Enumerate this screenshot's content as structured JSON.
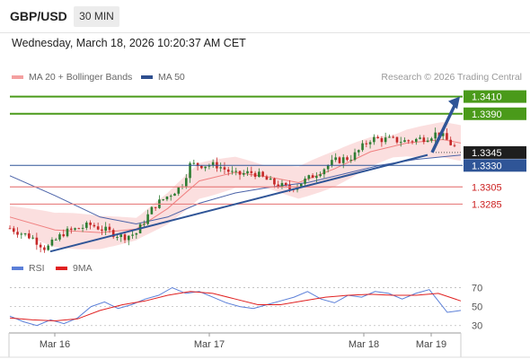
{
  "header": {
    "symbol": "GBP/USD",
    "timeframe": "30 MIN"
  },
  "timestamp": "Wednesday, March 18, 2026 10:20:37 AM CET",
  "legend": {
    "ma20_label": "MA 20 + Bollinger Bands",
    "ma50_label": "MA 50",
    "source": "Research © 2026 Trading Central"
  },
  "rsi_legend": {
    "rsi_label": "RSI",
    "ma9_label": "9MA"
  },
  "colors": {
    "resistance": "#4a9a1a",
    "support": "#e88080",
    "pivot": "#2f5597",
    "price_tag": "#1e1e1e",
    "bollinger": "#fbdcdc",
    "ma20": "#f08080",
    "ma50": "#4a62a8",
    "rsi": "#5b7fd8",
    "rsi_ma": "#e02020"
  },
  "chart_data": [
    {
      "type": "candlestick",
      "title": "GBP/USD 30 MIN",
      "x_ticks": [
        "Mar 16",
        "Mar 17",
        "Mar 18",
        "Mar 19"
      ],
      "ylim": [
        1.3225,
        1.342
      ],
      "indicators": [
        "MA 20 + Bollinger Bands",
        "MA 50"
      ],
      "levels": [
        {
          "value": 1.341,
          "label": "1.3410",
          "kind": "resistance"
        },
        {
          "value": 1.339,
          "label": "1.3390",
          "kind": "resistance"
        },
        {
          "value": 1.3345,
          "label": "1.3345",
          "kind": "last_price"
        },
        {
          "value": 1.333,
          "label": "1.3330",
          "kind": "pivot"
        },
        {
          "value": 1.3305,
          "label": "1.3305",
          "kind": "support"
        },
        {
          "value": 1.3285,
          "label": "1.3285",
          "kind": "support"
        }
      ],
      "trendline": [
        [
          0,
          1.323
        ],
        [
          100,
          1.3338
        ]
      ],
      "arrow_target": 1.341,
      "close_path": [
        [
          0,
          1.3257
        ],
        [
          5,
          1.3246
        ],
        [
          8,
          1.3233
        ],
        [
          12,
          1.3252
        ],
        [
          18,
          1.3261
        ],
        [
          25,
          1.3247
        ],
        [
          28,
          1.3251
        ],
        [
          32,
          1.3283
        ],
        [
          38,
          1.3306
        ],
        [
          40,
          1.3331
        ],
        [
          46,
          1.333
        ],
        [
          50,
          1.3319
        ],
        [
          54,
          1.3322
        ],
        [
          58,
          1.331
        ],
        [
          62,
          1.3303
        ],
        [
          66,
          1.3314
        ],
        [
          70,
          1.3328
        ],
        [
          72,
          1.3335
        ],
        [
          76,
          1.334
        ],
        [
          80,
          1.3361
        ],
        [
          84,
          1.336
        ],
        [
          88,
          1.3358
        ],
        [
          92,
          1.3362
        ],
        [
          95,
          1.3368
        ],
        [
          98,
          1.3354
        ],
        [
          100,
          1.3346
        ]
      ],
      "ma20_path": [
        [
          0,
          1.327
        ],
        [
          10,
          1.3255
        ],
        [
          20,
          1.3252
        ],
        [
          28,
          1.3256
        ],
        [
          35,
          1.328
        ],
        [
          42,
          1.3312
        ],
        [
          50,
          1.3322
        ],
        [
          58,
          1.3316
        ],
        [
          64,
          1.331
        ],
        [
          72,
          1.3326
        ],
        [
          80,
          1.3346
        ],
        [
          88,
          1.3356
        ],
        [
          96,
          1.336
        ],
        [
          100,
          1.3356
        ]
      ],
      "ma50_path": [
        [
          0,
          1.3318
        ],
        [
          10,
          1.3295
        ],
        [
          20,
          1.327
        ],
        [
          28,
          1.3262
        ],
        [
          35,
          1.327
        ],
        [
          42,
          1.3286
        ],
        [
          50,
          1.3298
        ],
        [
          58,
          1.3305
        ],
        [
          66,
          1.331
        ],
        [
          74,
          1.332
        ],
        [
          82,
          1.333
        ],
        [
          90,
          1.3337
        ],
        [
          100,
          1.3342
        ]
      ]
    },
    {
      "type": "line",
      "title": "RSI",
      "y_ticks": [
        70,
        50,
        30
      ],
      "ylim": [
        25,
        80
      ],
      "series": [
        {
          "name": "RSI",
          "values": [
            [
              0,
              40
            ],
            [
              3,
              34
            ],
            [
              6,
              30
            ],
            [
              9,
              36
            ],
            [
              12,
              32
            ],
            [
              15,
              38
            ],
            [
              18,
              50
            ],
            [
              21,
              55
            ],
            [
              24,
              48
            ],
            [
              27,
              52
            ],
            [
              30,
              58
            ],
            [
              33,
              62
            ],
            [
              36,
              70
            ],
            [
              39,
              64
            ],
            [
              42,
              66
            ],
            [
              45,
              60
            ],
            [
              48,
              54
            ],
            [
              51,
              50
            ],
            [
              54,
              48
            ],
            [
              57,
              52
            ],
            [
              60,
              56
            ],
            [
              63,
              60
            ],
            [
              66,
              66
            ],
            [
              69,
              58
            ],
            [
              72,
              54
            ],
            [
              75,
              62
            ],
            [
              78,
              60
            ],
            [
              81,
              66
            ],
            [
              84,
              64
            ],
            [
              87,
              58
            ],
            [
              90,
              64
            ],
            [
              93,
              68
            ],
            [
              95,
              56
            ],
            [
              97,
              44
            ],
            [
              100,
              46
            ]
          ]
        },
        {
          "name": "9MA",
          "values": [
            [
              0,
              38
            ],
            [
              5,
              36
            ],
            [
              10,
              35
            ],
            [
              15,
              37
            ],
            [
              20,
              46
            ],
            [
              25,
              52
            ],
            [
              30,
              56
            ],
            [
              35,
              62
            ],
            [
              40,
              66
            ],
            [
              45,
              64
            ],
            [
              50,
              58
            ],
            [
              55,
              52
            ],
            [
              60,
              52
            ],
            [
              65,
              56
            ],
            [
              70,
              60
            ],
            [
              75,
              62
            ],
            [
              80,
              63
            ],
            [
              85,
              62
            ],
            [
              90,
              62
            ],
            [
              95,
              64
            ],
            [
              100,
              56
            ]
          ]
        }
      ]
    }
  ]
}
